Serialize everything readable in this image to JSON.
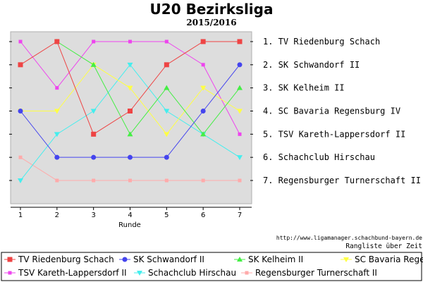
{
  "chart_data": {
    "type": "line",
    "title": "U20 Bezirksliga",
    "subtitle": "2015/2016",
    "xlabel": "Runde",
    "ylabel": "",
    "x": [
      1,
      2,
      3,
      4,
      5,
      6,
      7
    ],
    "ylim": [
      1,
      7
    ],
    "y_reversed": true,
    "grid": false,
    "legend_placement": "bottom",
    "rank_labels": [
      "1. TV Riedenburg Schach",
      "2. SK Schwandorf II",
      "3. SK Kelheim II",
      "4. SC Bavaria Regensburg IV",
      "5. TSV Kareth-Lappersdorf II",
      "6. Schachclub Hirschau",
      "7. Regensburger Turnerschaft II"
    ],
    "source": "http://www.ligamanager.schachbund-bayern.de",
    "caption": "Rangliste über Zeit",
    "series": [
      {
        "name": "TV Riedenburg Schach",
        "values": [
          2,
          1,
          5,
          4,
          2,
          1,
          1
        ],
        "color": "#ee4444",
        "marker": "square"
      },
      {
        "name": "SK Schwandorf II",
        "values": [
          4,
          6,
          6,
          6,
          6,
          4,
          2
        ],
        "color": "#4444ee",
        "marker": "circle"
      },
      {
        "name": "SK Kelheim II",
        "values": [
          null,
          1,
          2,
          5,
          3,
          5,
          3
        ],
        "color": "#44ee44",
        "marker": "triangle-up"
      },
      {
        "name": "SC Bavaria Regensburg IV",
        "values": [
          4,
          4,
          2,
          3,
          5,
          3,
          4
        ],
        "color": "#ffff44",
        "marker": "triangle-down"
      },
      {
        "name": "TSV Kareth-Lappersdorf II",
        "values": [
          1,
          3,
          1,
          1,
          1,
          2,
          5
        ],
        "color": "#ee44ee",
        "marker": "square-small"
      },
      {
        "name": "Schachclub Hirschau",
        "values": [
          7,
          5,
          4,
          2,
          4,
          5,
          6
        ],
        "color": "#44eeee",
        "marker": "triangle-down"
      },
      {
        "name": "Regensburger Turnerschaft II",
        "values": [
          6,
          7,
          7,
          7,
          7,
          7,
          7
        ],
        "color": "#ffaaaa",
        "marker": "square-small"
      }
    ]
  }
}
